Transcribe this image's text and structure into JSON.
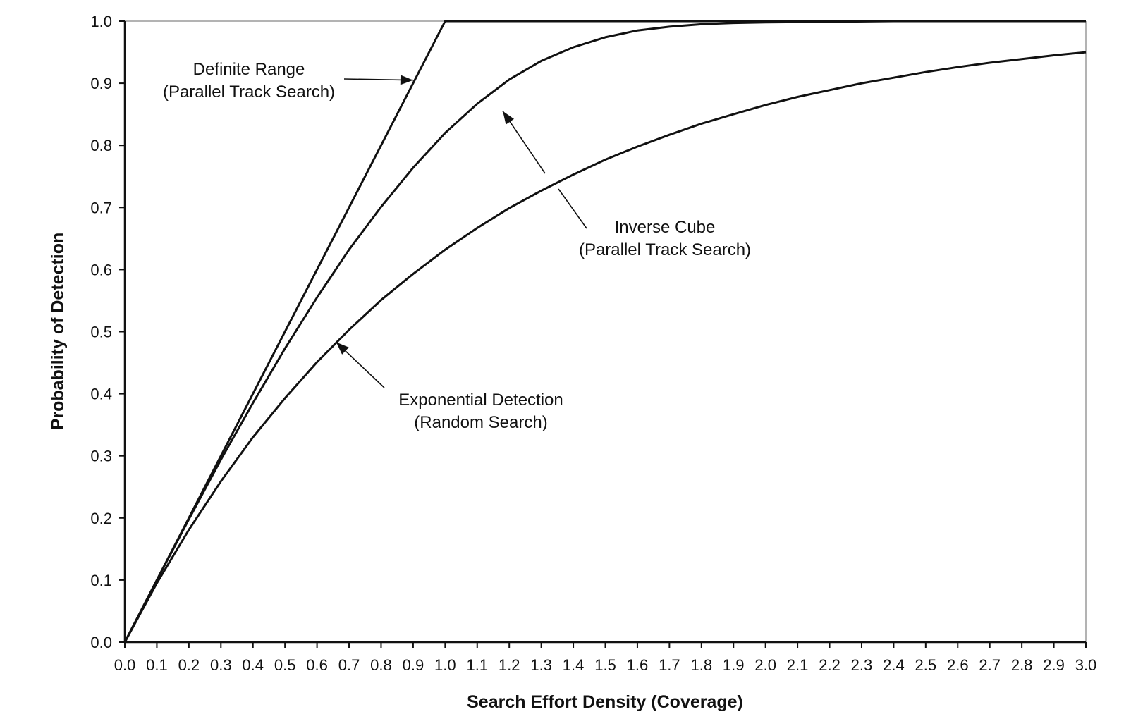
{
  "chart_data": {
    "type": "line",
    "xlabel": "Search Effort Density (Coverage)",
    "ylabel": "Probability of Detection",
    "xlim": [
      0,
      3
    ],
    "ylim": [
      0,
      1
    ],
    "grid": false,
    "legend": "none",
    "x_ticks": [
      "0.0",
      "0.1",
      "0.2",
      "0.3",
      "0.4",
      "0.5",
      "0.6",
      "0.7",
      "0.8",
      "0.9",
      "1.0",
      "1.1",
      "1.2",
      "1.3",
      "1.4",
      "1.5",
      "1.6",
      "1.7",
      "1.8",
      "1.9",
      "2.0",
      "2.1",
      "2.2",
      "2.3",
      "2.4",
      "2.5",
      "2.6",
      "2.7",
      "2.8",
      "2.9",
      "3.0"
    ],
    "y_ticks": [
      "0.0",
      "0.1",
      "0.2",
      "0.3",
      "0.4",
      "0.5",
      "0.6",
      "0.7",
      "0.8",
      "0.9",
      "1.0"
    ],
    "series": [
      {
        "x": [
          0,
          1.0,
          3.0
        ],
        "y": [
          0,
          1.0,
          1.0
        ]
      },
      {
        "x": [
          0,
          0.1,
          0.2,
          0.3,
          0.4,
          0.5,
          0.6,
          0.7,
          0.8,
          0.9,
          1.0,
          1.1,
          1.2,
          1.3,
          1.4,
          1.5,
          1.6,
          1.7,
          1.8,
          1.9,
          2.0,
          2.2,
          2.4,
          2.6,
          2.8,
          3.0
        ],
        "y": [
          0,
          0.0998,
          0.198,
          0.294,
          0.385,
          0.473,
          0.555,
          0.632,
          0.701,
          0.764,
          0.82,
          0.867,
          0.906,
          0.936,
          0.958,
          0.974,
          0.985,
          0.991,
          0.995,
          0.997,
          0.998,
          0.999,
          1.0,
          1.0,
          1.0,
          1.0
        ]
      },
      {
        "x": [
          0,
          0.1,
          0.2,
          0.3,
          0.4,
          0.5,
          0.6,
          0.7,
          0.8,
          0.9,
          1.0,
          1.1,
          1.2,
          1.3,
          1.4,
          1.5,
          1.6,
          1.7,
          1.8,
          1.9,
          2.0,
          2.1,
          2.2,
          2.3,
          2.4,
          2.5,
          2.6,
          2.7,
          2.8,
          2.9,
          3.0
        ],
        "y": [
          0,
          0.095,
          0.181,
          0.259,
          0.33,
          0.393,
          0.451,
          0.503,
          0.551,
          0.593,
          0.632,
          0.667,
          0.699,
          0.727,
          0.753,
          0.777,
          0.798,
          0.817,
          0.835,
          0.85,
          0.865,
          0.878,
          0.889,
          0.9,
          0.909,
          0.918,
          0.926,
          0.933,
          0.939,
          0.945,
          0.95
        ]
      }
    ],
    "annotations": [
      {
        "lines": [
          "Definite Range",
          "(Parallel Track Search)"
        ],
        "points_to_x": 0.9,
        "points_to_y": 0.905
      },
      {
        "lines": [
          "Inverse Cube",
          "(Parallel Track Search)"
        ],
        "points_to_x": 1.18,
        "points_to_y": 0.855
      },
      {
        "lines": [
          "Exponential Detection",
          "(Random Search)"
        ],
        "points_to_x": 0.66,
        "points_to_y": 0.483
      }
    ]
  }
}
